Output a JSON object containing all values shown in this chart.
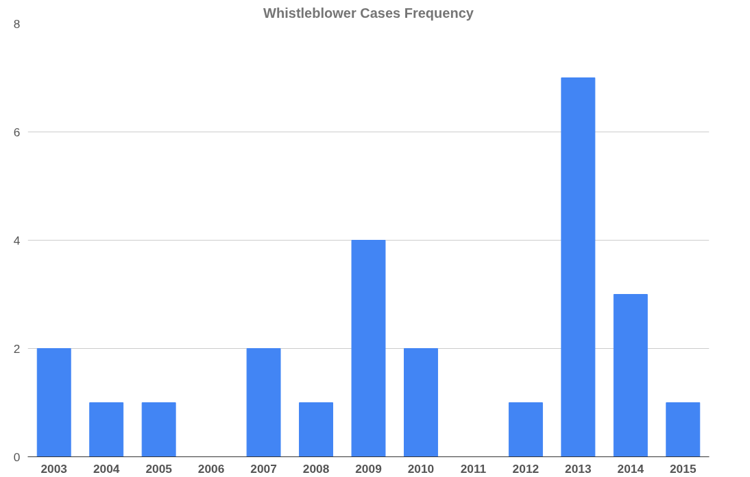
{
  "chart_data": {
    "type": "bar",
    "title": "Whistleblower Cases Frequency",
    "categories": [
      "2003",
      "2004",
      "2005",
      "2006",
      "2007",
      "2008",
      "2009",
      "2010",
      "2011",
      "2012",
      "2013",
      "2014",
      "2015"
    ],
    "values": [
      2,
      1,
      1,
      0,
      2,
      1,
      4,
      2,
      0,
      1,
      7,
      3,
      1
    ],
    "color": "#4285f4",
    "ylim": [
      0,
      8
    ],
    "yticks": [
      0,
      2,
      4,
      6,
      8
    ],
    "grid": "y"
  }
}
